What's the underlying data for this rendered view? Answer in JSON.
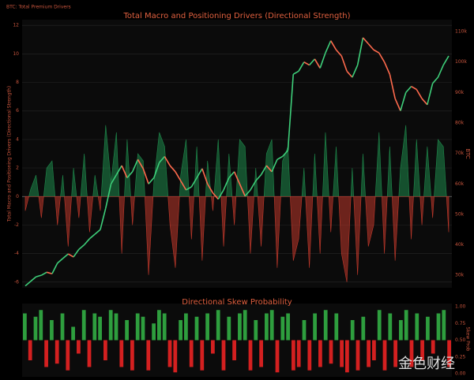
{
  "chart_data": [
    {
      "type": "area-price",
      "corner_label": "BTC: Total Premium Drivers",
      "title": "Total Macro and Positioning Drivers (Directional Strength)",
      "ylabel": "Total Macro and Positioning Drivers (Directional Strength)",
      "y2label": "BTC",
      "ylim": [
        -6.4,
        12.4
      ],
      "yticks": [
        -6,
        -4,
        -2,
        0,
        2,
        4,
        6,
        8,
        10,
        12
      ],
      "y2lim": [
        25900,
        113900
      ],
      "y2ticks": [
        {
          "value": 30000,
          "label": "30k"
        },
        {
          "value": 40000,
          "label": "40k"
        },
        {
          "value": 50000,
          "label": "50k"
        },
        {
          "value": 60000,
          "label": "60k"
        },
        {
          "value": 70000,
          "label": "70k"
        },
        {
          "value": 80000,
          "label": "80k"
        },
        {
          "value": 90000,
          "label": "90k"
        },
        {
          "value": 100000,
          "label": "100k"
        },
        {
          "value": 110000,
          "label": "110k"
        }
      ],
      "grid": true,
      "pos_color": "#1f8a4c",
      "neg_color": "#c0392b",
      "series": [
        {
          "values": [
            -1,
            0.5,
            1.5,
            -1.5,
            2,
            2.5,
            -2,
            1.5,
            -3.5,
            2,
            -1.5,
            3,
            -2.5,
            1.5,
            -1,
            5,
            1,
            4.5,
            -4,
            4,
            -2,
            3,
            2.5,
            -5.5,
            1,
            4.5,
            3.5,
            -2,
            -5,
            1.5,
            4,
            -3,
            3.5,
            -4.5,
            2.5,
            -1,
            4,
            -3.5,
            3,
            -2,
            4,
            3.5,
            -4,
            2,
            -3.5,
            3,
            4,
            -5,
            2.5,
            3.5,
            -4.5,
            -3,
            2,
            -5,
            3,
            -4,
            4.5,
            -2.5,
            3.5,
            -4,
            -6,
            2,
            -5.5,
            3,
            -3.5,
            -2,
            4.5,
            -4,
            3.5,
            -4.5,
            2,
            5,
            -3,
            4,
            -2,
            3.5,
            -1.5,
            4,
            3.5,
            -2.5
          ]
        },
        {
          "axis": "y2",
          "up_color": "#3ecf7a",
          "down_color": "#ff6a4d",
          "values": [
            26500,
            28000,
            29500,
            30000,
            31000,
            30500,
            34000,
            35500,
            37000,
            36000,
            38500,
            40000,
            42000,
            43500,
            45000,
            52000,
            60000,
            63000,
            66000,
            62000,
            64000,
            68000,
            65000,
            60000,
            62000,
            67000,
            69000,
            66000,
            64000,
            61000,
            58000,
            59000,
            62000,
            65000,
            60000,
            57000,
            55000,
            58000,
            62000,
            64000,
            60000,
            56000,
            58000,
            61000,
            63000,
            66000,
            64000,
            68000,
            69000,
            71000,
            96000,
            97000,
            100000,
            99000,
            101000,
            98000,
            103000,
            107000,
            104000,
            102000,
            97000,
            95000,
            99000,
            108000,
            106000,
            104000,
            103000,
            100000,
            96000,
            88000,
            84000,
            90000,
            92000,
            91000,
            88000,
            86000,
            93000,
            95000,
            99000,
            102000
          ]
        }
      ]
    },
    {
      "type": "skew-bar",
      "title": "Directional Skew Probability",
      "y2label": "Skew Prob",
      "watermark": "金色财经",
      "ylim": [
        0,
        1
      ],
      "yticks": [
        {
          "value": 0,
          "label": "0.00"
        },
        {
          "value": 0.25,
          "label": "0.25"
        },
        {
          "value": 0.5,
          "label": "0.50"
        },
        {
          "value": 0.75,
          "label": "0.75"
        },
        {
          "value": 1,
          "label": "1.00"
        }
      ],
      "baseline": 0.5,
      "pos_color": "#2e9e3e",
      "neg_color": "#d42020",
      "values": [
        0.9,
        0.2,
        0.85,
        0.95,
        0.1,
        0.8,
        0.15,
        0.9,
        0.05,
        0.7,
        0.3,
        0.95,
        0.1,
        0.9,
        0.85,
        0.2,
        0.95,
        0.9,
        0.1,
        0.8,
        0.05,
        0.9,
        0.85,
        0.05,
        0.75,
        0.95,
        0.9,
        0.1,
        0.02,
        0.8,
        0.9,
        0.1,
        0.85,
        0.05,
        0.9,
        0.3,
        0.95,
        0.05,
        0.85,
        0.2,
        0.9,
        0.95,
        0.05,
        0.8,
        0.1,
        0.9,
        0.95,
        0.02,
        0.85,
        0.9,
        0.05,
        0.1,
        0.8,
        0.05,
        0.9,
        0.1,
        0.95,
        0.15,
        0.9,
        0.1,
        0.02,
        0.8,
        0.05,
        0.85,
        0.1,
        0.2,
        0.95,
        0.05,
        0.9,
        0.1,
        0.8,
        0.95,
        0.1,
        0.9,
        0.2,
        0.85,
        0.3,
        0.9,
        0.95,
        0.1
      ]
    }
  ]
}
